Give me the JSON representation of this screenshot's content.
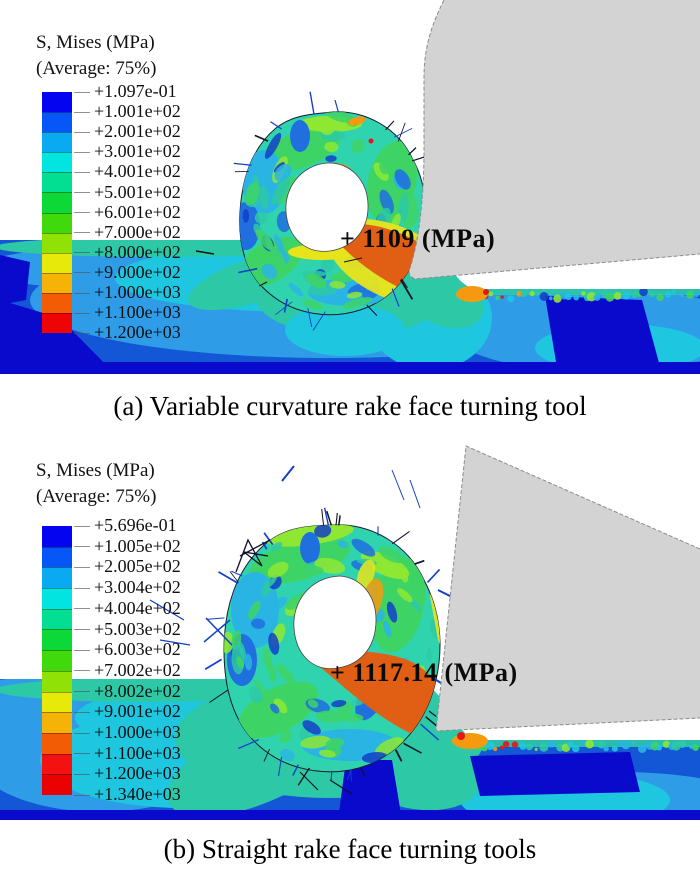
{
  "figure": {
    "type": "FEA von Mises stress contour comparison (ABAQUS viewport renders)",
    "panels": 2
  },
  "panel_a": {
    "legend": {
      "title": "S, Mises (MPa)",
      "subtitle": "(Average: 75%)",
      "values": [
        "+1.097e-01",
        "+1.001e+02",
        "+2.001e+02",
        "+3.001e+02",
        "+4.001e+02",
        "+5.001e+02",
        "+6.001e+02",
        "+7.000e+02",
        "+8.000e+02",
        "+9.000e+02",
        "+1.000e+03",
        "+1.100e+03",
        "+1.200e+03"
      ],
      "band_colors": [
        "#0404f0",
        "#0656f8",
        "#09aaf2",
        "#02e4df",
        "#03df92",
        "#0cd937",
        "#40d90c",
        "#90e206",
        "#e6e909",
        "#f4b306",
        "#f25c05",
        "#ee0404"
      ]
    },
    "annotation": "+ 1109 (MPa)",
    "caption": "(a) Variable curvature rake face turning tool"
  },
  "panel_b": {
    "legend": {
      "title": "S, Mises (MPa)",
      "subtitle": "(Average: 75%)",
      "values": [
        "+5.696e-01",
        "+1.005e+02",
        "+2.005e+02",
        "+3.004e+02",
        "+4.004e+02",
        "+5.003e+02",
        "+6.003e+02",
        "+7.002e+02",
        "+8.002e+02",
        "+9.001e+02",
        "+1.000e+03",
        "+1.100e+03",
        "+1.200e+03",
        "+1.340e+03"
      ],
      "band_colors": [
        "#0404f0",
        "#0656f8",
        "#09aaf2",
        "#02e4df",
        "#03df92",
        "#0cd937",
        "#40d90c",
        "#90e206",
        "#e6e909",
        "#f4b306",
        "#f25c05",
        "#f31111",
        "#ea0202"
      ]
    },
    "annotation": "+ 1117.14 (MPa)",
    "caption": "(b) Straight rake face turning tools"
  },
  "colors": {
    "tool_gray": "#d3d3d3",
    "tool_edge": "#8c8c8c",
    "workpiece_base": "#1457d6",
    "light_blue": "#2f9ce8",
    "cyan": "#1fc6e0",
    "teal": "#2dc9a6",
    "dark_blue": "#0a0acd",
    "chip_base": "#2fd4ae",
    "chip_green": "#3ed465",
    "chip_light_green": "#8ee833",
    "chip_cyan": "#2ab4e4",
    "chip_blue": "#1f6fdf",
    "chip_navy": "#1340c8",
    "orange": "#e05f14",
    "orange_bright": "#f59a10",
    "yellow": "#e8e41c",
    "red": "#e81414",
    "spike": "#10102a"
  }
}
